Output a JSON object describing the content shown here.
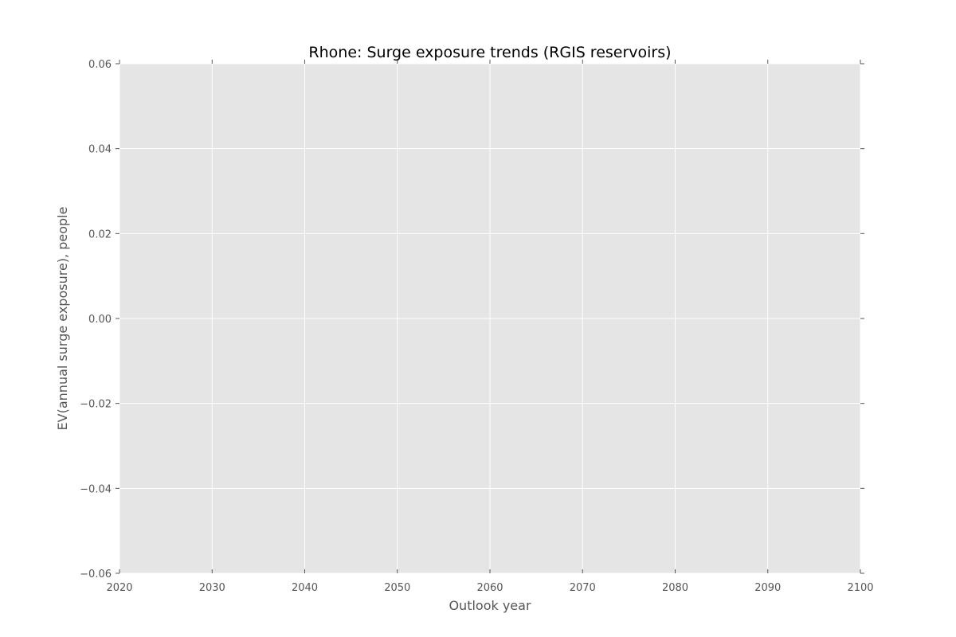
{
  "chart_data": {
    "type": "line",
    "title": "Rhone: Surge exposure trends (RGIS reservoirs)",
    "xlabel": "Outlook year",
    "ylabel": "EV(annual surge exposure), people",
    "xlim": [
      2020,
      2100
    ],
    "ylim": [
      -0.06,
      0.06
    ],
    "x_ticks": [
      2020,
      2030,
      2040,
      2050,
      2060,
      2070,
      2080,
      2090,
      2100
    ],
    "x_tick_labels": [
      "2020",
      "2030",
      "2040",
      "2050",
      "2060",
      "2070",
      "2080",
      "2090",
      "2100"
    ],
    "y_ticks": [
      0.06,
      0.04,
      0.02,
      0.0,
      -0.02,
      -0.04,
      -0.06
    ],
    "y_tick_labels": [
      "0.06",
      "0.04",
      "0.02",
      "0.00",
      "−0.02",
      "−0.04",
      "−0.06"
    ],
    "series": [],
    "grid": true,
    "style": "ggplot",
    "colors": {
      "plot_background": "#e5e5e5",
      "grid": "#ffffff",
      "tick": "#555555",
      "text": "#555555",
      "title": "#000000"
    }
  }
}
